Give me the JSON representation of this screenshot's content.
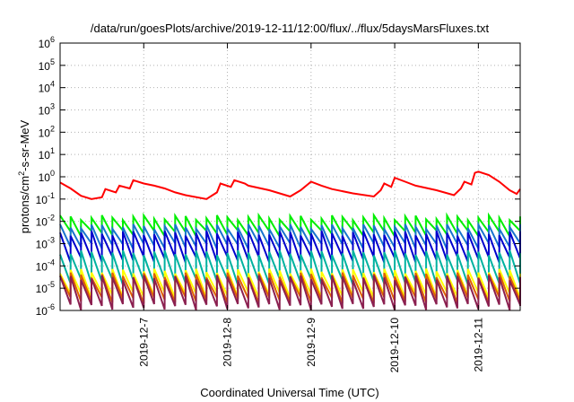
{
  "chart_data": {
    "type": "line",
    "title": "/data/run/goesPlots/archive/2019-12-11/12:00/flux/../flux/5daysMarsFluxes.txt",
    "xlabel": "Coordinated Universal Time (UTC)",
    "ylabel": {
      "prefix": "protons/cm",
      "sup": "2",
      "suffix": "-s-sr-MeV"
    },
    "yscale": "log",
    "ylim": [
      1e-06,
      1000000.0
    ],
    "y_ticks": [
      {
        "value": 1e-06,
        "base": "10",
        "exp": "-6"
      },
      {
        "value": 1e-05,
        "base": "10",
        "exp": "-5"
      },
      {
        "value": 0.0001,
        "base": "10",
        "exp": "-4"
      },
      {
        "value": 0.001,
        "base": "10",
        "exp": "-3"
      },
      {
        "value": 0.01,
        "base": "10",
        "exp": "-2"
      },
      {
        "value": 0.1,
        "base": "10",
        "exp": "-1"
      },
      {
        "value": 1,
        "base": "10",
        "exp": "0"
      },
      {
        "value": 10,
        "base": "10",
        "exp": "1"
      },
      {
        "value": 100,
        "base": "10",
        "exp": "2"
      },
      {
        "value": 1000,
        "base": "10",
        "exp": "3"
      },
      {
        "value": 10000,
        "base": "10",
        "exp": "4"
      },
      {
        "value": 100000,
        "base": "10",
        "exp": "5"
      },
      {
        "value": 1000000,
        "base": "10",
        "exp": "6"
      }
    ],
    "xlim": [
      "2019-12-06T00:00",
      "2019-12-11T12:00"
    ],
    "x_ticks": [
      {
        "value": "2019-12-07T00:00",
        "label": "2019-12-7"
      },
      {
        "value": "2019-12-08T00:00",
        "label": "2019-12-8"
      },
      {
        "value": "2019-12-09T00:00",
        "label": "2019-12-9"
      },
      {
        "value": "2019-12-10T00:00",
        "label": "2019-12-10"
      },
      {
        "value": "2019-12-11T00:00",
        "label": "2019-12-11"
      }
    ],
    "grid": true,
    "legend": "none",
    "series": [
      {
        "color": "#ff0000",
        "x": [
          "2019-12-06T00:00",
          "2019-12-06T03:00",
          "2019-12-06T06:00",
          "2019-12-06T09:00",
          "2019-12-06T12:00",
          "2019-12-06T13:00",
          "2019-12-06T16:00",
          "2019-12-06T17:00",
          "2019-12-06T20:00",
          "2019-12-06T21:00",
          "2019-12-07T00:00",
          "2019-12-07T03:00",
          "2019-12-07T06:00",
          "2019-12-07T09:00",
          "2019-12-07T12:00",
          "2019-12-07T18:00",
          "2019-12-07T21:00",
          "2019-12-07T22:00",
          "2019-12-08T01:00",
          "2019-12-08T02:00",
          "2019-12-08T05:00",
          "2019-12-08T06:00",
          "2019-12-08T12:00",
          "2019-12-08T18:00",
          "2019-12-08T21:00",
          "2019-12-09T00:00",
          "2019-12-09T03:00",
          "2019-12-09T06:00",
          "2019-12-09T12:00",
          "2019-12-09T18:00",
          "2019-12-09T20:00",
          "2019-12-09T21:00",
          "2019-12-09T23:00",
          "2019-12-10T00:00",
          "2019-12-10T03:00",
          "2019-12-10T06:00",
          "2019-12-10T12:00",
          "2019-12-10T17:00",
          "2019-12-10T19:00",
          "2019-12-10T20:00",
          "2019-12-10T22:00",
          "2019-12-10T23:00",
          "2019-12-11T00:00",
          "2019-12-11T03:00",
          "2019-12-11T06:00",
          "2019-12-11T09:00",
          "2019-12-11T11:00",
          "2019-12-11T12:00"
        ],
        "values": [
          0.55,
          0.3,
          0.14,
          0.1,
          0.12,
          0.28,
          0.2,
          0.4,
          0.3,
          0.7,
          0.5,
          0.4,
          0.3,
          0.2,
          0.15,
          0.1,
          0.2,
          0.5,
          0.35,
          0.7,
          0.5,
          0.4,
          0.25,
          0.13,
          0.25,
          0.6,
          0.4,
          0.28,
          0.18,
          0.13,
          0.25,
          0.5,
          0.35,
          0.9,
          0.6,
          0.4,
          0.25,
          0.15,
          0.3,
          0.6,
          0.45,
          1.5,
          1.7,
          1.2,
          0.6,
          0.25,
          0.17,
          0.28
        ]
      },
      {
        "color": "#00ee00",
        "pattern": {
          "start": "2019-12-06T00:00",
          "period_hours": 3,
          "high": 0.015,
          "low": 0.003
        }
      },
      {
        "color": "#1874cd",
        "pattern": {
          "start": "2019-12-06T00:00",
          "period_hours": 3,
          "high": 0.006,
          "low": 0.0008
        }
      },
      {
        "color": "#0000cd",
        "pattern": {
          "start": "2019-12-06T00:00",
          "period_hours": 3,
          "high": 0.003,
          "low": 0.0002
        }
      },
      {
        "color": "#00b2a0",
        "pattern": {
          "start": "2019-12-06T00:00",
          "period_hours": 3,
          "high": 0.0004,
          "low": 2e-05
        }
      },
      {
        "color": "#ffff00",
        "pattern": {
          "start": "2019-12-06T00:00",
          "period_hours": 3,
          "high": 6e-05,
          "low": 5e-06
        }
      },
      {
        "color": "#e06000",
        "pattern": {
          "start": "2019-12-06T00:00",
          "period_hours": 3,
          "high": 4e-05,
          "low": 3e-06
        }
      },
      {
        "color": "#8b2050",
        "pattern": {
          "start": "2019-12-06T00:00",
          "period_hours": 3,
          "high": 3e-05,
          "low": 1.5e-06
        }
      }
    ]
  }
}
